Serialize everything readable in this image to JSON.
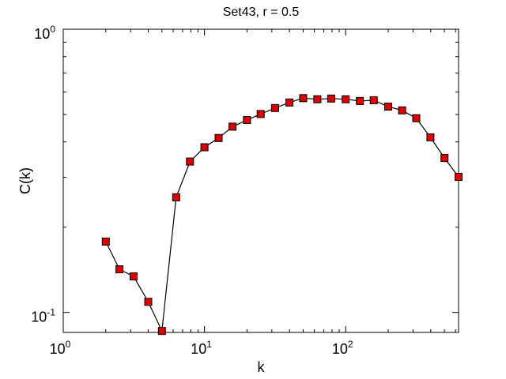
{
  "chart_data": {
    "type": "line",
    "title": "Set43, r = 0.5",
    "xlabel": "k",
    "ylabel": "C(k)",
    "xscale": "log",
    "yscale": "log",
    "xlim": [
      1,
      630
    ],
    "ylim": [
      0.085,
      1
    ],
    "grid": false,
    "x_ticks": [
      {
        "value": 1,
        "label": "10",
        "exp": "0"
      },
      {
        "value": 10,
        "label": "10",
        "exp": "1"
      },
      {
        "value": 100,
        "label": "10",
        "exp": "2"
      }
    ],
    "y_ticks": [
      {
        "value": 0.1,
        "label": "10",
        "exp": "-1"
      },
      {
        "value": 1,
        "label": "10",
        "exp": "0"
      }
    ],
    "series": [
      {
        "line_color": "#000000",
        "marker": "square",
        "marker_color": "#dd0000",
        "x": [
          2,
          2.5,
          3.15,
          4,
          5,
          6.3,
          7.9,
          10,
          12.6,
          15.8,
          20,
          25,
          31.6,
          40,
          50,
          63,
          79,
          100,
          126,
          158,
          200,
          251,
          316,
          398,
          501,
          630
        ],
        "y": [
          0.178,
          0.142,
          0.134,
          0.109,
          0.086,
          0.255,
          0.341,
          0.383,
          0.413,
          0.453,
          0.478,
          0.502,
          0.527,
          0.551,
          0.571,
          0.566,
          0.569,
          0.566,
          0.558,
          0.561,
          0.533,
          0.517,
          0.485,
          0.415,
          0.351,
          0.301
        ]
      }
    ]
  }
}
